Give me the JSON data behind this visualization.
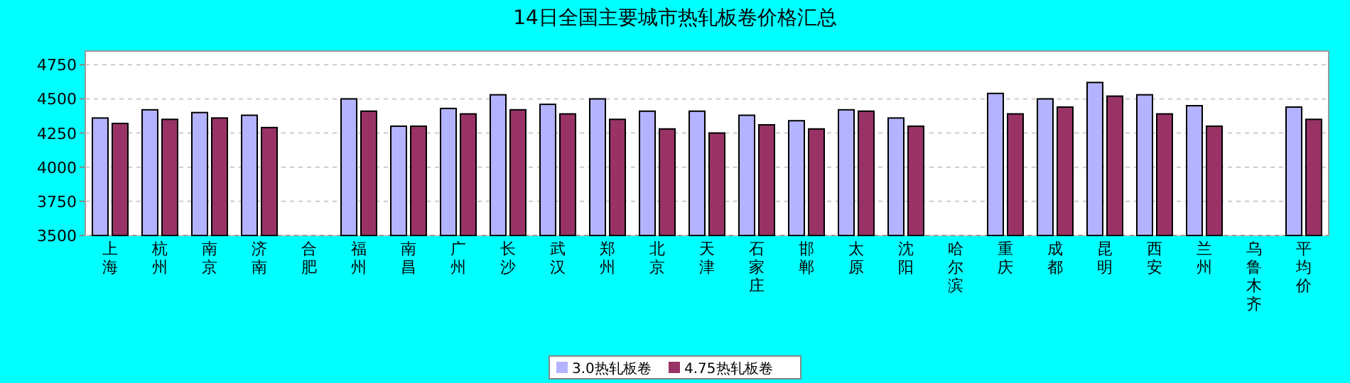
{
  "chart_data": {
    "type": "bar",
    "title": "14日全国主要城市热轧板卷价格汇总",
    "categories": [
      "上海",
      "杭州",
      "南京",
      "济南",
      "合肥",
      "福州",
      "南昌",
      "广州",
      "长沙",
      "武汉",
      "郑州",
      "北京",
      "天津",
      "石家庄",
      "邯郸",
      "太原",
      "沈阳",
      "哈尔滨",
      "重庆",
      "成都",
      "昆明",
      "西安",
      "兰州",
      "乌鲁木齐",
      "平均价"
    ],
    "series": [
      {
        "name": "3.0热轧板卷",
        "color": "#b3b3ff",
        "values": [
          4360,
          4420,
          4400,
          4380,
          null,
          4500,
          4300,
          4430,
          4530,
          4460,
          4500,
          4410,
          4410,
          4380,
          4340,
          4420,
          4360,
          null,
          4540,
          4500,
          4620,
          4530,
          4450,
          null,
          4440
        ]
      },
      {
        "name": "4.75热轧板卷",
        "color": "#993366",
        "values": [
          4320,
          4350,
          4360,
          4290,
          null,
          4410,
          4300,
          4390,
          4420,
          4390,
          4350,
          4280,
          4250,
          4310,
          4280,
          4410,
          4300,
          null,
          4390,
          4440,
          4520,
          4390,
          4300,
          null,
          4350
        ]
      }
    ],
    "ylim": [
      3500,
      4850
    ],
    "yticks": [
      3500,
      3750,
      4000,
      4250,
      4500,
      4750
    ],
    "grid": "y",
    "legend": "bottom"
  }
}
